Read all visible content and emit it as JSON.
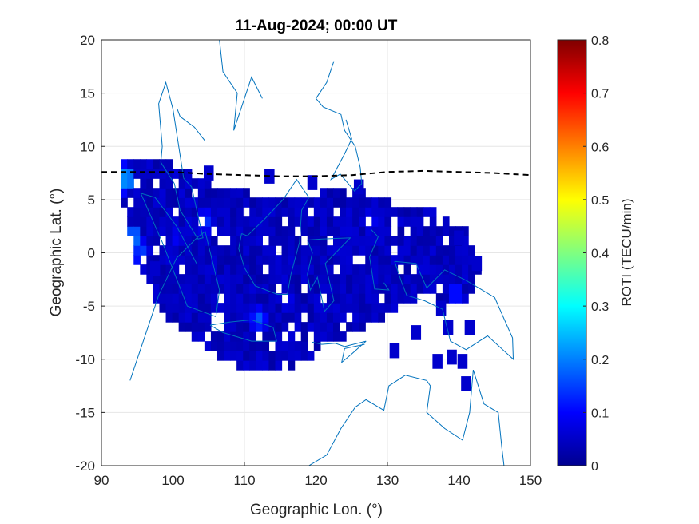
{
  "chart_data": {
    "type": "heatmap",
    "title": "11-Aug-2024; 00:00 UT",
    "xlabel": "Geographic Lon. (°)",
    "ylabel": "Geographic Lat. (°)",
    "xlim": [
      90,
      150
    ],
    "ylim": [
      -20,
      20
    ],
    "xticks": [
      "90",
      "100",
      "110",
      "120",
      "130",
      "140",
      "150"
    ],
    "yticks": [
      "20",
      "15",
      "10",
      "5",
      "0",
      "-5",
      "-10",
      "-15",
      "-20"
    ],
    "grid": true,
    "colorbar": {
      "label": "ROTI (TECU/min)",
      "range": [
        0,
        0.8
      ],
      "colormap": "jet",
      "ticks": [
        "0",
        "0.1",
        "0.2",
        "0.3",
        "0.4",
        "0.5",
        "0.6",
        "0.7",
        "0.8"
      ]
    },
    "dip_equator": {
      "style": "dashed",
      "color": "#000000",
      "lon": [
        90,
        95,
        100,
        105,
        110,
        115,
        120,
        125,
        130,
        135,
        140,
        145,
        150
      ],
      "lat": [
        7.6,
        7.6,
        7.6,
        7.4,
        7.3,
        7.2,
        7.2,
        7.3,
        7.6,
        7.7,
        7.6,
        7.5,
        7.3
      ]
    },
    "coastline_color": "#0072bd",
    "background_roti": 0.05,
    "roti_cells": [
      {
        "lon": 93.5,
        "lat": 7.0,
        "roti": 0.28
      },
      {
        "lon": 94.5,
        "lat": 1.5,
        "roti": 0.24
      },
      {
        "lon": 95.5,
        "lat": 0.0,
        "roti": 0.18
      },
      {
        "lon": 104.5,
        "lat": 3.0,
        "roti": 0.16
      },
      {
        "lon": 112.0,
        "lat": -6.2,
        "roti": 0.18
      },
      {
        "lon": 127.5,
        "lat": 3.0,
        "roti": 0.13
      },
      {
        "lon": 139.5,
        "lat": -3.8,
        "roti": 0.15
      },
      {
        "lon": 116.0,
        "lat": -4.5,
        "roti": 0.11
      },
      {
        "lon": 100.5,
        "lat": 1.5,
        "roti": 0.11
      }
    ],
    "coverage_region": {
      "description_free": true,
      "outer_lon": [
        92.7,
        98,
        105,
        112,
        118,
        124,
        130,
        136,
        141,
        143,
        141,
        135,
        128,
        122,
        116,
        110,
        104,
        99,
        95,
        92.7
      ],
      "outer_lat": [
        8.9,
        9.2,
        6.5,
        5.5,
        5.0,
        6.3,
        5.0,
        4.0,
        2.0,
        -1.5,
        -5.0,
        -4.0,
        -6.5,
        -8.5,
        -11.2,
        -10.8,
        -9.0,
        -6.0,
        -1.0,
        4.5
      ]
    }
  }
}
